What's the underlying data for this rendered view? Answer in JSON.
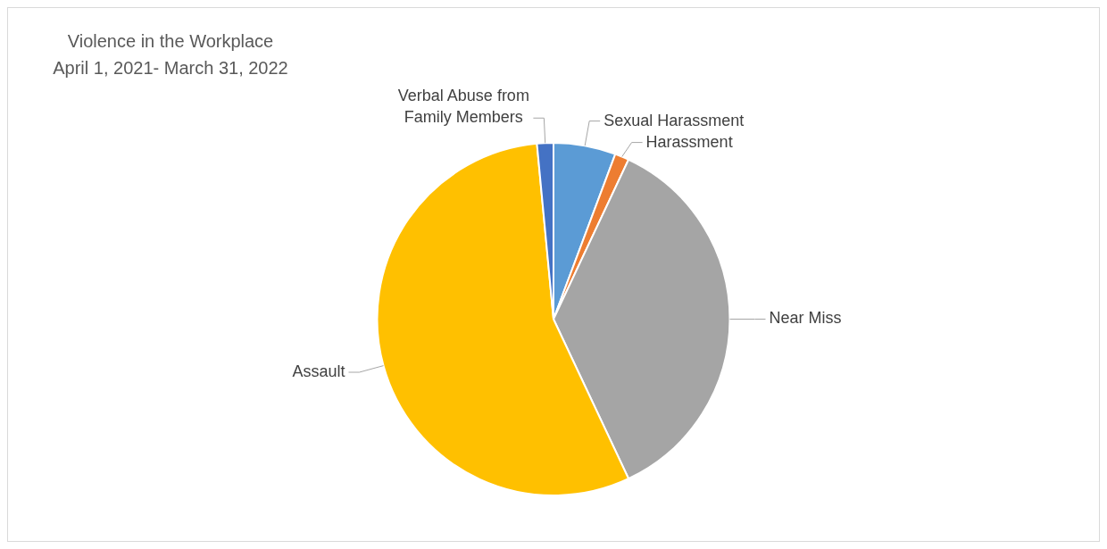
{
  "chart_data": {
    "type": "pie",
    "title": "Violence in the Workplace\nApril 1, 2021- March 31, 2022",
    "categories": [
      "Sexual Harassment",
      "Harassment",
      "Near Miss",
      "Assault",
      "Verbal Abuse from Family Members"
    ],
    "values": [
      5.7,
      1.3,
      36,
      55.5,
      1.5
    ],
    "colors": [
      "#5b9bd5",
      "#ed7d31",
      "#a5a5a5",
      "#ffc000",
      "#4472c4"
    ],
    "legend": false
  }
}
